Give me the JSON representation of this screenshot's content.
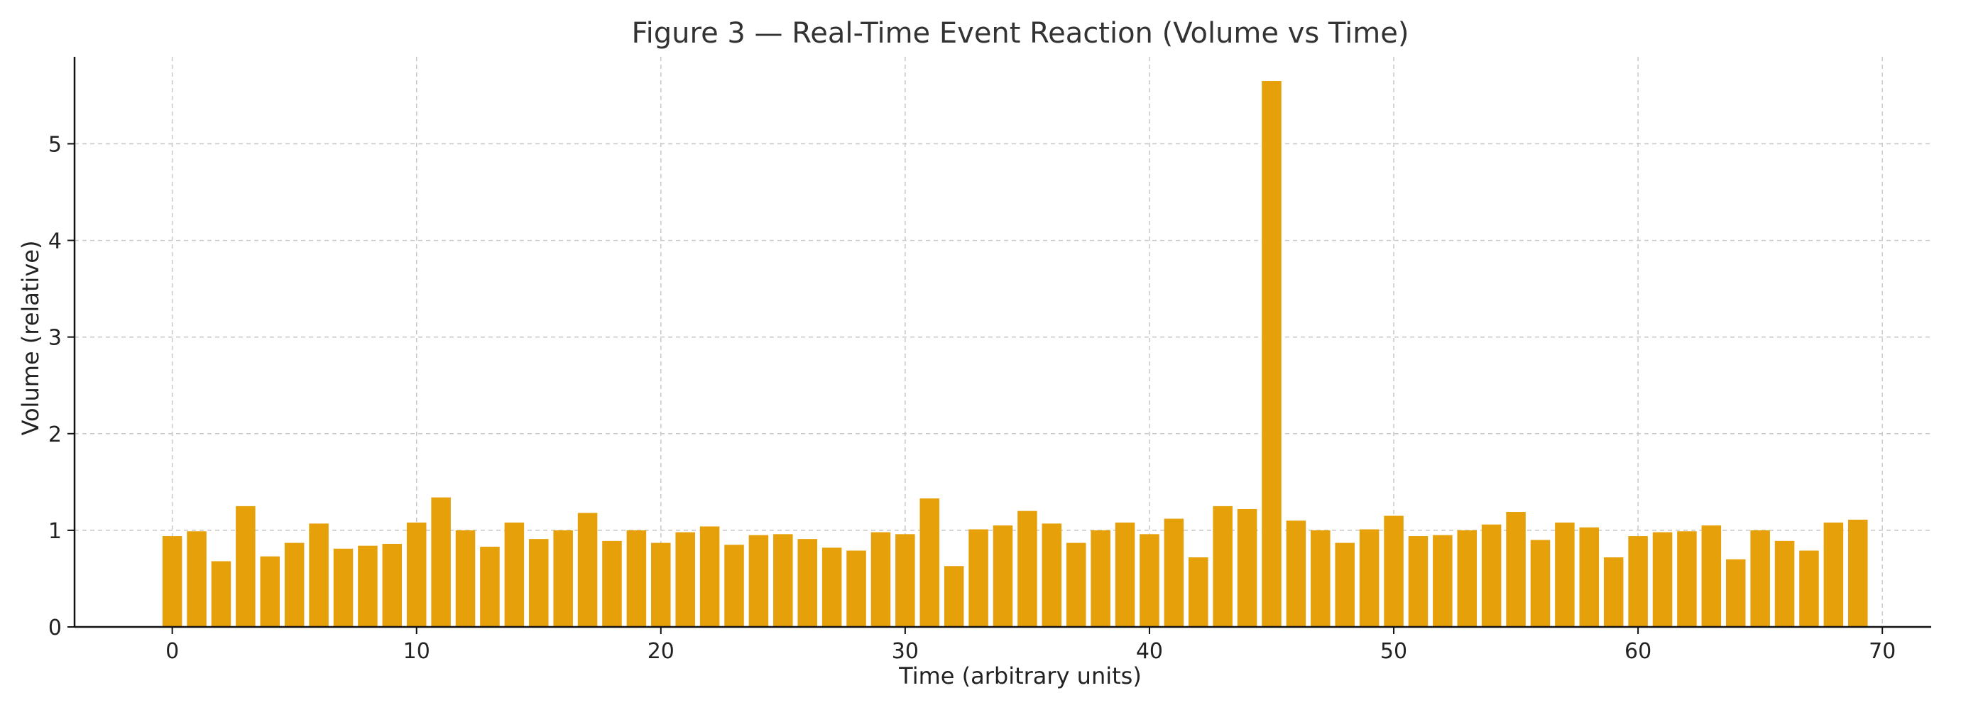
{
  "chart_data": {
    "type": "bar",
    "title": "Figure 3 — Real-Time Event Reaction (Volume vs Time)",
    "xlabel": "Time (arbitrary units)",
    "ylabel": "Volume (relative)",
    "xlim": [
      -4,
      72
    ],
    "ylim": [
      0,
      5.9
    ],
    "xticks": [
      0,
      10,
      20,
      30,
      40,
      50,
      60,
      70
    ],
    "yticks": [
      0,
      1,
      2,
      3,
      4,
      5
    ],
    "grid": true,
    "bar_color": "#E6A00A",
    "x": [
      0,
      1,
      2,
      3,
      4,
      5,
      6,
      7,
      8,
      9,
      10,
      11,
      12,
      13,
      14,
      15,
      16,
      17,
      18,
      19,
      20,
      21,
      22,
      23,
      24,
      25,
      26,
      27,
      28,
      29,
      30,
      31,
      32,
      33,
      34,
      35,
      36,
      37,
      38,
      39,
      40,
      41,
      42,
      43,
      44,
      45,
      46,
      47,
      48,
      49,
      50,
      51,
      52,
      53,
      54,
      55,
      56,
      57,
      58,
      59,
      60,
      61,
      62,
      63,
      64,
      65,
      66,
      67,
      68,
      69
    ],
    "values": [
      0.94,
      0.99,
      0.68,
      1.25,
      0.73,
      0.87,
      1.07,
      0.81,
      0.84,
      0.86,
      1.08,
      1.34,
      1.0,
      0.83,
      1.08,
      0.91,
      1.0,
      1.18,
      0.89,
      1.0,
      0.87,
      0.98,
      1.04,
      0.85,
      0.95,
      0.96,
      0.91,
      0.82,
      0.79,
      0.98,
      0.96,
      1.33,
      0.63,
      1.01,
      1.05,
      1.2,
      1.07,
      0.87,
      1.0,
      1.08,
      0.96,
      1.12,
      0.72,
      1.25,
      1.22,
      5.65,
      1.1,
      1.0,
      0.87,
      1.01,
      1.15,
      0.94,
      0.95,
      1.0,
      1.06,
      1.19,
      0.9,
      1.08,
      1.03,
      0.72,
      0.94,
      0.98,
      0.99,
      1.05,
      0.7,
      1.0,
      0.89,
      0.79,
      1.08,
      1.11
    ]
  }
}
